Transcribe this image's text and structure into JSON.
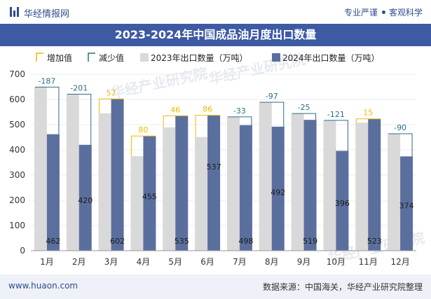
{
  "header": {
    "brand": "华经情报网",
    "tag1": "专业严谨",
    "tag2": "客观科学"
  },
  "footer": {
    "website": "www.huaon.com",
    "source": "数据来源：中国海关，华经产业研究院整理"
  },
  "watermark": "华经产业研究院",
  "chart_data": {
    "type": "bar",
    "title": "2023-2024年中国成品油月度出口数量",
    "categories": [
      "1月",
      "2月",
      "3月",
      "4月",
      "5月",
      "6月",
      "7月",
      "8月",
      "9月",
      "10月",
      "11月",
      "12月"
    ],
    "series": [
      {
        "name": "2023年出口数量（万吨）",
        "color": "#d9d9d9",
        "values": [
          649,
          621,
          545,
          375,
          489,
          451,
          531,
          589,
          544,
          517,
          508,
          464
        ]
      },
      {
        "name": "2024年出口数量（万吨）",
        "color": "#5b6f9e",
        "values": [
          462,
          420,
          602,
          455,
          535,
          537,
          498,
          492,
          519,
          396,
          523,
          374
        ]
      }
    ],
    "changes": [
      -187,
      -201,
      57,
      80,
      46,
      86,
      -33,
      -97,
      -25,
      -121,
      15,
      -90
    ],
    "legend": {
      "increase": "增加值",
      "decrease": "减少值",
      "increase_color": "#f2b705",
      "decrease_color": "#2e6b8a"
    },
    "ylim": [
      0,
      700
    ],
    "yticks": [
      0,
      100,
      200,
      300,
      400,
      500,
      600,
      700
    ],
    "legend_position": "top-left"
  }
}
